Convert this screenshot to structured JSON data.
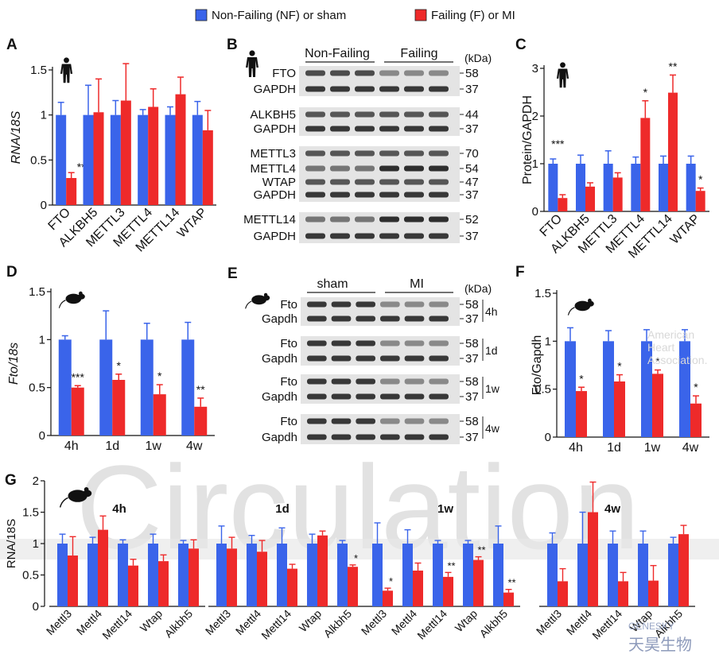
{
  "colors": {
    "nf": "#3a64ea",
    "f": "#ee2a2a",
    "axis": "#111111",
    "band_bg": "#e6e6e6",
    "watermark": "#d9d9d9"
  },
  "legend": {
    "nf_label": "Non-Failing (NF) or sham",
    "f_label": "Failing (F) or MI"
  },
  "watermark": {
    "text": "Circulation",
    "aha": [
      "American",
      "Heart",
      "Association."
    ],
    "logo": [
      "GENESKY",
      "天昊生物"
    ]
  },
  "icons": {
    "human": "human-silhouette-icon",
    "mouse": "mouse-silhouette-icon"
  },
  "chart_data": [
    {
      "id": "A",
      "panel_label": "A",
      "type": "bar",
      "ylabel": "RNA/18S",
      "ylim": [
        0,
        1.5
      ],
      "yticks": [
        "0",
        "0.5",
        "1",
        "1.5"
      ],
      "categories": [
        "FTO",
        "ALKBH5",
        "METTL3",
        "METTL4",
        "METTL14",
        "WTAP"
      ],
      "series": [
        {
          "values": [
            1.0,
            1.0,
            1.0,
            1.0,
            1.0,
            1.0
          ],
          "errors": [
            0.14,
            0.33,
            0.16,
            0.06,
            0.09,
            0.15
          ]
        },
        {
          "values": [
            0.3,
            1.03,
            1.16,
            1.09,
            1.23,
            0.83
          ],
          "errors": [
            0.06,
            0.37,
            0.41,
            0.2,
            0.19,
            0.22
          ]
        }
      ],
      "sig": [
        "**",
        "",
        "",
        "",
        "",
        ""
      ]
    },
    {
      "id": "C",
      "panel_label": "C",
      "type": "bar",
      "ylabel": "Protein/GAPDH",
      "ylim": [
        0,
        3
      ],
      "yticks": [
        "0",
        "1",
        "2",
        "3"
      ],
      "categories": [
        "FTO",
        "ALKBH5",
        "METTL3",
        "METTL4",
        "METTL14",
        "WTAP"
      ],
      "series": [
        {
          "values": [
            1.0,
            1.0,
            1.0,
            1.0,
            1.0,
            1.0
          ],
          "errors": [
            0.1,
            0.18,
            0.27,
            0.14,
            0.16,
            0.16
          ]
        },
        {
          "values": [
            0.28,
            0.52,
            0.71,
            1.96,
            2.49,
            0.43
          ],
          "errors": [
            0.07,
            0.08,
            0.1,
            0.36,
            0.37,
            0.06
          ]
        }
      ],
      "sig": [
        "***",
        "",
        "",
        "*",
        "**",
        "*"
      ]
    },
    {
      "id": "D",
      "panel_label": "D",
      "type": "bar",
      "ylabel": "Fto/18s",
      "ylim": [
        0,
        1.5
      ],
      "yticks": [
        "0",
        "0.5",
        "1",
        "1.5"
      ],
      "categories": [
        "4h",
        "1d",
        "1w",
        "4w"
      ],
      "series": [
        {
          "values": [
            1.0,
            1.0,
            1.0,
            1.0
          ],
          "errors": [
            0.04,
            0.3,
            0.17,
            0.18
          ]
        },
        {
          "values": [
            0.5,
            0.58,
            0.43,
            0.3
          ],
          "errors": [
            0.02,
            0.06,
            0.1,
            0.09
          ]
        }
      ],
      "sig": [
        "***",
        "*",
        "*",
        "**"
      ]
    },
    {
      "id": "F",
      "panel_label": "F",
      "type": "bar",
      "ylabel": "Fto/Gapdh",
      "ylim": [
        0,
        1.5
      ],
      "yticks": [
        "0",
        "0.5",
        "1",
        "1.5"
      ],
      "categories": [
        "4h",
        "1d",
        "1w",
        "4w"
      ],
      "series": [
        {
          "values": [
            1.0,
            1.0,
            1.0,
            1.0
          ],
          "errors": [
            0.14,
            0.11,
            0.12,
            0.12
          ]
        },
        {
          "values": [
            0.48,
            0.58,
            0.66,
            0.35
          ],
          "errors": [
            0.04,
            0.07,
            0.04,
            0.08
          ]
        }
      ],
      "sig": [
        "*",
        "*",
        "*",
        "*"
      ]
    },
    {
      "id": "G",
      "panel_label": "G",
      "type": "bar",
      "ylabel": "RNA/18S",
      "ylim": [
        0,
        2
      ],
      "yticks": [
        "0",
        "0.5",
        "1",
        "1.5",
        "2"
      ],
      "groups": [
        {
          "title": "4h",
          "categories": [
            "Mettl3",
            "Mettl4",
            "Mettl14",
            "Wtap",
            "Alkbh5"
          ],
          "nf": [
            1.0,
            1.0,
            1.0,
            1.0,
            1.0
          ],
          "nf_err": [
            0.15,
            0.1,
            0.06,
            0.15,
            0.05
          ],
          "f": [
            0.81,
            1.22,
            0.65,
            0.72,
            0.92
          ],
          "f_err": [
            0.3,
            0.22,
            0.1,
            0.1,
            0.14
          ],
          "sig": [
            "",
            "",
            "",
            "",
            ""
          ]
        },
        {
          "title": "1d",
          "categories": [
            "Mettl3",
            "Mettl4",
            "Mettl14",
            "Wtap",
            "Alkbh5"
          ],
          "nf": [
            1.0,
            1.0,
            1.0,
            1.0,
            1.0
          ],
          "nf_err": [
            0.28,
            0.13,
            0.25,
            0.15,
            0.05
          ],
          "f": [
            0.92,
            0.87,
            0.6,
            1.13,
            0.63
          ],
          "f_err": [
            0.18,
            0.18,
            0.07,
            0.07,
            0.03
          ],
          "sig": [
            "",
            "",
            "",
            "",
            "*"
          ]
        },
        {
          "title": "1w",
          "categories": [
            "Mettl3",
            "Mettl4",
            "Mettl14",
            "Wtap",
            "Alkbh5"
          ],
          "nf": [
            1.0,
            1.0,
            1.0,
            1.0,
            1.0
          ],
          "nf_err": [
            0.33,
            0.22,
            0.05,
            0.05,
            0.28
          ],
          "f": [
            0.25,
            0.57,
            0.47,
            0.74,
            0.22
          ],
          "f_err": [
            0.04,
            0.12,
            0.07,
            0.05,
            0.05
          ],
          "sig": [
            "*",
            "",
            "**",
            "**",
            "**"
          ]
        },
        {
          "title": "4w",
          "categories": [
            "Mettl3",
            "Mettl4",
            "Mettl14",
            "Wtap",
            "Alkbh5"
          ],
          "nf": [
            1.0,
            1.0,
            1.0,
            1.0,
            1.0
          ],
          "nf_err": [
            0.17,
            0.5,
            0.2,
            0.2,
            0.1
          ],
          "f": [
            0.4,
            1.5,
            0.4,
            0.41,
            1.15
          ],
          "f_err": [
            0.2,
            0.48,
            0.14,
            0.24,
            0.14
          ],
          "sig": [
            "",
            "",
            "",
            "",
            ""
          ]
        }
      ]
    }
  ],
  "blot_B": {
    "panel_label": "B",
    "headers": [
      "Non-Failing",
      "Failing"
    ],
    "kda": "(kDa)",
    "rows": [
      {
        "label": "FTO",
        "kda": "58",
        "group": 0
      },
      {
        "label": "GAPDH",
        "kda": "37",
        "group": 0
      },
      {
        "label": "ALKBH5",
        "kda": "44",
        "group": 1
      },
      {
        "label": "GAPDH",
        "kda": "37",
        "group": 1
      },
      {
        "label": "METTL3",
        "kda": "70",
        "group": 2
      },
      {
        "label": "METTL4",
        "kda": "54",
        "group": 2
      },
      {
        "label": "WTAP",
        "kda": "47",
        "group": 2
      },
      {
        "label": "GAPDH",
        "kda": "37",
        "group": 2
      },
      {
        "label": "METTL14",
        "kda": "52",
        "group": 3
      },
      {
        "label": "GAPDH",
        "kda": "37",
        "group": 3
      }
    ]
  },
  "blot_E": {
    "panel_label": "E",
    "headers": [
      "sham",
      "MI"
    ],
    "kda": "(kDa)",
    "rows": [
      {
        "label": "Fto",
        "kda": "58",
        "time": "4h",
        "group": 0
      },
      {
        "label": "Gapdh",
        "kda": "37",
        "time": "",
        "group": 0
      },
      {
        "label": "Fto",
        "kda": "58",
        "time": "1d",
        "group": 1
      },
      {
        "label": "Gapdh",
        "kda": "37",
        "time": "",
        "group": 1
      },
      {
        "label": "Fto",
        "kda": "58",
        "time": "1w",
        "group": 2
      },
      {
        "label": "Gapdh",
        "kda": "37",
        "time": "",
        "group": 2
      },
      {
        "label": "Fto",
        "kda": "58",
        "time": "4w",
        "group": 3
      },
      {
        "label": "Gapdh",
        "kda": "37",
        "time": "",
        "group": 3
      }
    ]
  }
}
